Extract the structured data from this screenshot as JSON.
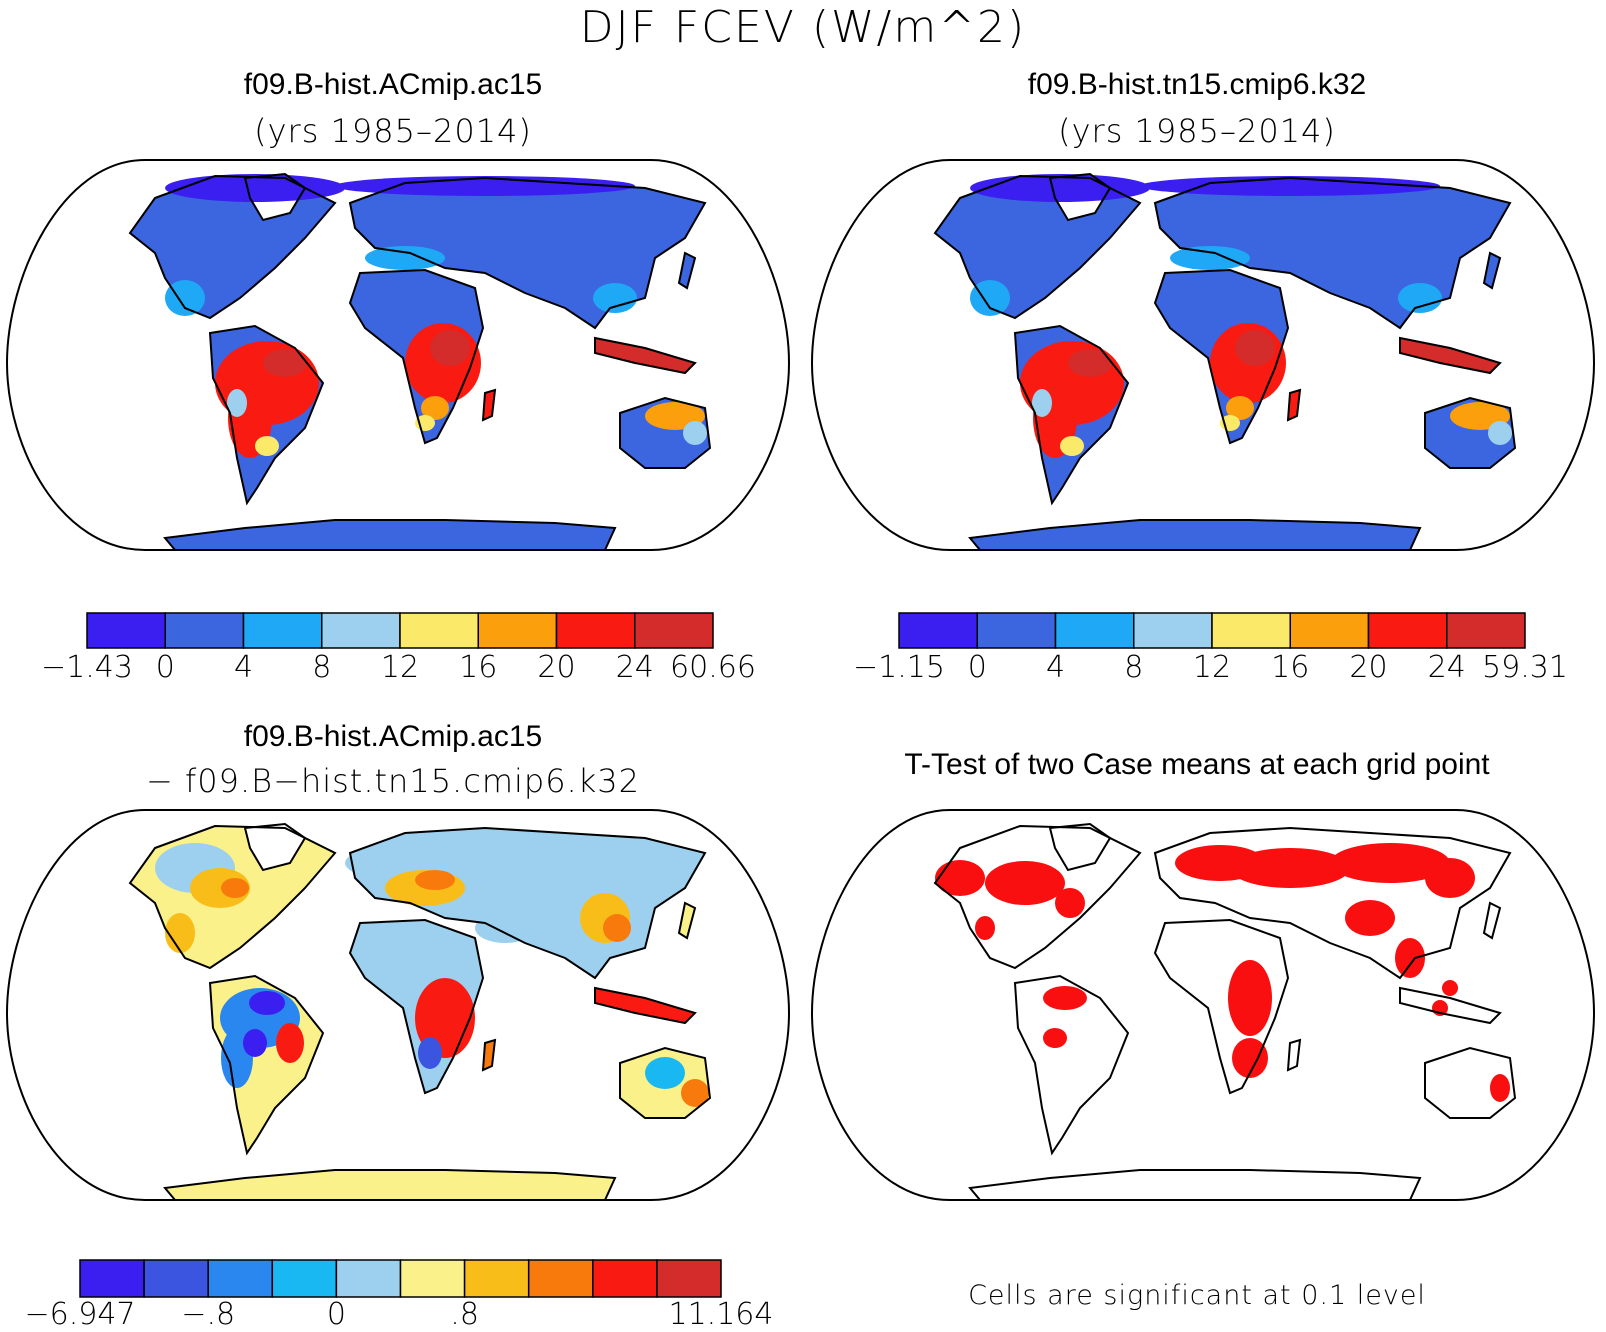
{
  "figure": {
    "title": "DJF FCEV (W/m^2)"
  },
  "panels": [
    {
      "title": "f09.B-hist.ACmip.ac15",
      "subtitle": "(yrs 1985–2014)",
      "colorbar": {
        "colors": [
          "#3a1ff0",
          "#3c66e0",
          "#1ea8f5",
          "#9dd0ef",
          "#fbea6a",
          "#fba00c",
          "#f91b12",
          "#d42b2b"
        ],
        "labels": [
          "−1.43",
          "0",
          "4",
          "8",
          "12",
          "16",
          "20",
          "24",
          "60.66"
        ]
      }
    },
    {
      "title": "f09.B-hist.tn15.cmip6.k32",
      "subtitle": "(yrs 1985–2014)",
      "colorbar": {
        "colors": [
          "#3a1ff0",
          "#3c66e0",
          "#1ea8f5",
          "#9dd0ef",
          "#fbea6a",
          "#fba00c",
          "#f91b12",
          "#d42b2b"
        ],
        "labels": [
          "−1.15",
          "0",
          "4",
          "8",
          "12",
          "16",
          "20",
          "24",
          "59.31"
        ]
      }
    },
    {
      "title": "f09.B-hist.ACmip.ac15",
      "subtitle": "− f09.B−hist.tn15.cmip6.k32",
      "colorbar": {
        "colors": [
          "#3a1ff0",
          "#3c55e0",
          "#2b87f0",
          "#1ab8f2",
          "#9dd0ef",
          "#fbf18a",
          "#f9bd1a",
          "#f97a0c",
          "#f91b12",
          "#d42b2b"
        ],
        "labels": [
          "−6.947",
          "",
          "−.8",
          "",
          "0",
          "",
          ".8",
          "",
          "",
          "",
          "11.164"
        ]
      }
    },
    {
      "title": "T-Test of two Case means at each grid point",
      "footnote": "Cells are significant at 0.1 level",
      "significant_color": "#f90f0f"
    }
  ]
}
